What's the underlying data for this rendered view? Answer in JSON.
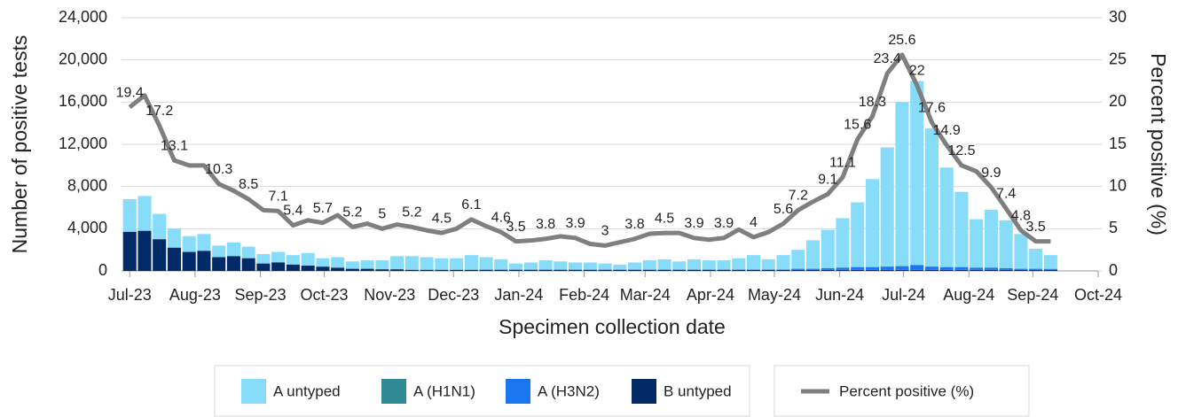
{
  "chart_data": {
    "type": "bar",
    "x_label": "Specimen collection date",
    "y_label": "Number of positive tests",
    "y2_label": "Percent positive (%)",
    "categories": [
      null,
      null,
      null,
      null,
      null,
      null,
      null,
      null,
      null,
      null,
      null,
      null,
      null,
      null,
      null,
      null,
      null,
      null,
      null,
      null,
      null,
      null,
      null,
      null,
      null,
      null,
      null,
      null,
      null,
      null,
      null,
      null,
      null,
      null,
      null,
      null,
      null,
      null,
      null,
      null,
      null,
      null,
      null,
      null,
      null,
      null,
      null,
      null,
      null,
      null,
      null,
      null,
      null,
      null,
      null,
      null,
      null,
      null,
      null,
      null,
      null,
      null,
      null
    ],
    "xlim": [
      -0.55,
      65.2
    ],
    "xticks": [
      {
        "value": 0,
        "label": "Jul-23"
      },
      {
        "value": 4.4,
        "label": "Aug-23"
      },
      {
        "value": 8.8,
        "label": "Sep-23"
      },
      {
        "value": 13.1,
        "label": "Oct-23"
      },
      {
        "value": 17.5,
        "label": "Nov-23"
      },
      {
        "value": 21.8,
        "label": "Dec-23"
      },
      {
        "value": 26.2,
        "label": "Jan-24"
      },
      {
        "value": 30.6,
        "label": "Feb-24"
      },
      {
        "value": 34.7,
        "label": "Mar-24"
      },
      {
        "value": 39.1,
        "label": "Apr-24"
      },
      {
        "value": 43.4,
        "label": "May-24"
      },
      {
        "value": 47.8,
        "label": "Jun-24"
      },
      {
        "value": 52.1,
        "label": "Jul-24"
      },
      {
        "value": 56.5,
        "label": "Aug-24"
      },
      {
        "value": 60.8,
        "label": "Sep-24"
      },
      {
        "value": 65.2,
        "label": "Oct-24"
      }
    ],
    "ylim": [
      0,
      24000
    ],
    "yticks": [
      0,
      {
        "value": 4000,
        "label": "4,000"
      },
      {
        "value": 8000,
        "label": "8,000"
      },
      {
        "value": 12000,
        "label": "12,000"
      },
      {
        "value": 16000,
        "label": "16,000"
      },
      {
        "value": 20000,
        "label": "20,000"
      },
      {
        "value": 24000,
        "label": "24,000"
      }
    ],
    "y2lim": [
      0,
      30
    ],
    "y2ticks": [
      0,
      5,
      10,
      15,
      20,
      25,
      30
    ],
    "grid": true,
    "series": [
      {
        "name": "B untyped",
        "type": "bar",
        "color": "#012a66",
        "values": [
          3700,
          3800,
          3000,
          2200,
          1800,
          1900,
          1300,
          1400,
          1200,
          700,
          800,
          600,
          500,
          400,
          300,
          200,
          200,
          150,
          150,
          100,
          100,
          100,
          100,
          100,
          100,
          100,
          100,
          100,
          100,
          100,
          100,
          100,
          100,
          100,
          100,
          100,
          100,
          100,
          100,
          100,
          100,
          100,
          100,
          100,
          100,
          100,
          100,
          100,
          100,
          100,
          100,
          100,
          100,
          100,
          100,
          100,
          100,
          100,
          100,
          100,
          100,
          100,
          100
        ]
      },
      {
        "name": "A (H3N2)",
        "type": "bar",
        "color": "#1a75f0",
        "values": [
          0,
          0,
          0,
          0,
          0,
          0,
          0,
          0,
          0,
          0,
          0,
          0,
          0,
          0,
          0,
          0,
          0,
          0,
          0,
          0,
          0,
          0,
          0,
          0,
          30,
          30,
          30,
          30,
          30,
          30,
          30,
          30,
          30,
          30,
          30,
          30,
          30,
          30,
          30,
          30,
          30,
          30,
          30,
          30,
          30,
          100,
          100,
          150,
          200,
          250,
          250,
          300,
          350,
          450,
          300,
          250,
          250,
          200,
          200,
          150,
          100,
          100,
          80
        ]
      },
      {
        "name": "A (H1N1)",
        "type": "bar",
        "color": "#2e8b96",
        "values": [
          20,
          20,
          20,
          20,
          20,
          20,
          20,
          20,
          20,
          20,
          20,
          20,
          20,
          20,
          20,
          20,
          20,
          20,
          20,
          20,
          20,
          20,
          20,
          20,
          20,
          20,
          20,
          20,
          20,
          20,
          20,
          20,
          20,
          20,
          20,
          20,
          20,
          20,
          20,
          20,
          20,
          20,
          20,
          20,
          20,
          20,
          20,
          20,
          20,
          20,
          20,
          20,
          20,
          20,
          20,
          20,
          20,
          20,
          20,
          20,
          20,
          20,
          20
        ]
      },
      {
        "name": "A untyped",
        "type": "bar",
        "color": "#87dcfa",
        "values": [
          3080,
          3280,
          2380,
          1780,
          1480,
          1580,
          1080,
          1280,
          1080,
          880,
          980,
          880,
          1180,
          780,
          980,
          680,
          780,
          830,
          1230,
          1280,
          1180,
          1080,
          1080,
          1380,
          1150,
          950,
          550,
          650,
          850,
          750,
          650,
          650,
          550,
          450,
          650,
          850,
          950,
          750,
          950,
          850,
          850,
          1050,
          1350,
          950,
          1350,
          1780,
          2680,
          3630,
          4680,
          6130,
          8330,
          11280,
          15530,
          17430,
          13080,
          9430,
          7130,
          4580,
          5480,
          4530,
          3280,
          1880,
          1300
        ]
      },
      {
        "name": "Percent positive (%)",
        "type": "line",
        "axis": "y2",
        "color": "#7f7f7f",
        "values": [
          19.4,
          20.8,
          17.2,
          13.1,
          12.5,
          12.5,
          10.3,
          9.5,
          8.5,
          7.2,
          7.1,
          5.4,
          6.0,
          5.7,
          6.6,
          5.2,
          5.6,
          5.0,
          5.5,
          5.2,
          4.8,
          4.5,
          5.0,
          6.1,
          5.3,
          4.6,
          3.5,
          3.6,
          3.8,
          4.1,
          3.9,
          3.2,
          3.0,
          3.4,
          3.8,
          4.4,
          4.5,
          4.5,
          3.9,
          3.7,
          3.9,
          4.9,
          4.0,
          4.6,
          5.6,
          7.2,
          8.2,
          9.1,
          11.1,
          15.6,
          18.3,
          23.4,
          25.6,
          22,
          17.6,
          14.9,
          12.5,
          11.8,
          9.9,
          7.4,
          4.8,
          3.5,
          3.5
        ],
        "value_labels": [
          "19.4",
          null,
          "17.2",
          "13.1",
          null,
          null,
          "10.3",
          null,
          "8.5",
          null,
          "7.1",
          "5.4",
          null,
          "5.7",
          null,
          "5.2",
          null,
          "5",
          null,
          "5.2",
          null,
          "4.5",
          null,
          "6.1",
          null,
          "4.6",
          "3.5",
          null,
          "3.8",
          null,
          "3.9",
          null,
          "3",
          null,
          "3.8",
          null,
          "4.5",
          null,
          "3.9",
          null,
          "3.9",
          null,
          "4",
          null,
          "5.6",
          "7.2",
          null,
          "9.1",
          "11.1",
          "15.6",
          "18.3",
          "23.4",
          "25.6",
          "22",
          "17.6",
          "14.9",
          "12.5",
          null,
          "9.9",
          "7.4",
          "4.8",
          "3.5",
          null
        ]
      }
    ]
  }
}
